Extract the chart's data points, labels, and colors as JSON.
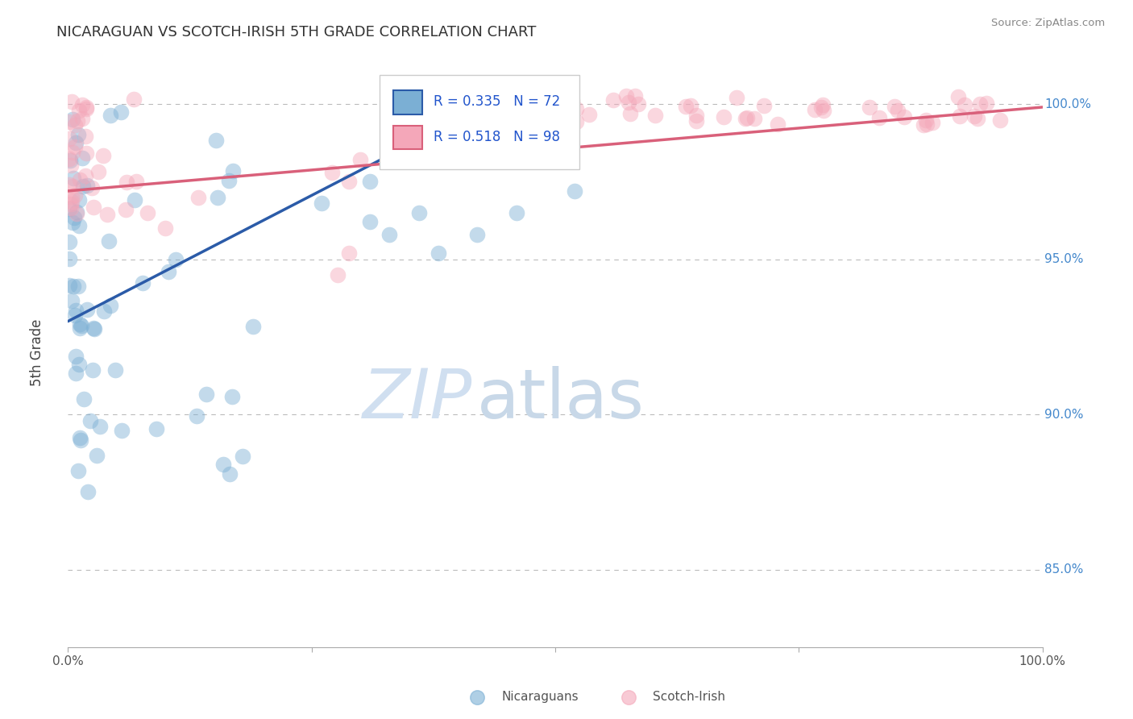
{
  "title": "NICARAGUAN VS SCOTCH-IRISH 5TH GRADE CORRELATION CHART",
  "source": "Source: ZipAtlas.com",
  "ylabel": "5th Grade",
  "ytick_labels": [
    "100.0%",
    "95.0%",
    "90.0%",
    "85.0%"
  ],
  "ytick_values": [
    1.0,
    0.95,
    0.9,
    0.85
  ],
  "xlim": [
    0.0,
    1.0
  ],
  "ylim": [
    0.825,
    1.015
  ],
  "blue_color": "#7BAFD4",
  "pink_color": "#F4A7B9",
  "blue_line_color": "#2B5BA8",
  "pink_line_color": "#D9607A",
  "legend_R_blue": "0.335",
  "legend_N_blue": "72",
  "legend_R_pink": "0.518",
  "legend_N_pink": "98",
  "legend_label_blue": "Nicaraguans",
  "legend_label_pink": "Scotch-Irish",
  "blue_trend": [
    0.0,
    0.45,
    0.93,
    1.003
  ],
  "pink_trend": [
    0.0,
    1.0,
    0.972,
    0.999
  ],
  "watermark_zip": "ZIP",
  "watermark_atlas": "atlas"
}
